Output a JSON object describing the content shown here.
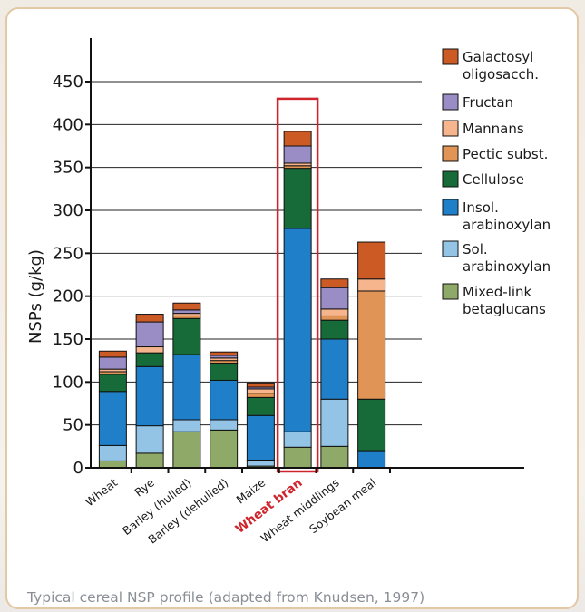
{
  "caption": "Typical cereal NSP profile (adapted from Knudsen, 1997)",
  "chart_data": {
    "type": "bar",
    "stacked": true,
    "title": "",
    "xlabel": "",
    "ylabel": "NSPs (g/kg)",
    "ylim": [
      0,
      450
    ],
    "yticks": [
      0,
      50,
      100,
      150,
      200,
      250,
      300,
      350,
      400,
      450
    ],
    "grid": true,
    "legend_position": "right",
    "categories": [
      "Wheat",
      "Rye",
      "Barley (hulled)",
      "Barley (dehulled)",
      "Maize",
      "Wheat bran",
      "Wheat middlings",
      "Soybean meal"
    ],
    "highlight": "Wheat bran",
    "highlight_color": "#d0242c",
    "series": [
      {
        "name": "Mixed-link betaglucans",
        "color": "#8faa68",
        "values": [
          8,
          17,
          42,
          44,
          2,
          24,
          25,
          0
        ]
      },
      {
        "name": "Sol. arabinoxylan",
        "color": "#93c4e6",
        "values": [
          18,
          32,
          14,
          12,
          7,
          18,
          55,
          0
        ]
      },
      {
        "name": "Insol. arabinoxylan",
        "color": "#1f7fc8",
        "values": [
          63,
          69,
          76,
          46,
          52,
          237,
          70,
          20
        ]
      },
      {
        "name": "Cellulose",
        "color": "#176b38",
        "values": [
          20,
          16,
          42,
          20,
          21,
          70,
          22,
          60
        ]
      },
      {
        "name": "Pectic subst.",
        "color": "#e09455",
        "values": [
          3,
          0,
          3,
          3,
          5,
          3,
          5,
          126
        ]
      },
      {
        "name": "Mannans",
        "color": "#f6b58c",
        "values": [
          3,
          7,
          3,
          3,
          5,
          3,
          8,
          14
        ]
      },
      {
        "name": "Fructan",
        "color": "#9a8cc4",
        "values": [
          14,
          29,
          4,
          3,
          2,
          20,
          25,
          0
        ]
      },
      {
        "name": "Galactosyl oligosacch.",
        "color": "#cc5a25",
        "values": [
          7,
          9,
          8,
          4,
          5,
          17,
          10,
          43
        ]
      }
    ],
    "legend": [
      {
        "lines": [
          "Galactosyl",
          "oligosacch."
        ],
        "color": "#cc5a25"
      },
      {
        "lines": [
          "Fructan"
        ],
        "color": "#9a8cc4"
      },
      {
        "lines": [
          "Mannans"
        ],
        "color": "#f6b58c"
      },
      {
        "lines": [
          "Pectic subst."
        ],
        "color": "#e09455"
      },
      {
        "lines": [
          "Cellulose"
        ],
        "color": "#176b38"
      },
      {
        "lines": [
          "Insol.",
          "arabinoxylan"
        ],
        "color": "#1f7fc8"
      },
      {
        "lines": [
          "Sol.",
          "arabinoxylan"
        ],
        "color": "#93c4e6"
      },
      {
        "lines": [
          "Mixed-link",
          "betaglucans"
        ],
        "color": "#8faa68"
      }
    ]
  }
}
